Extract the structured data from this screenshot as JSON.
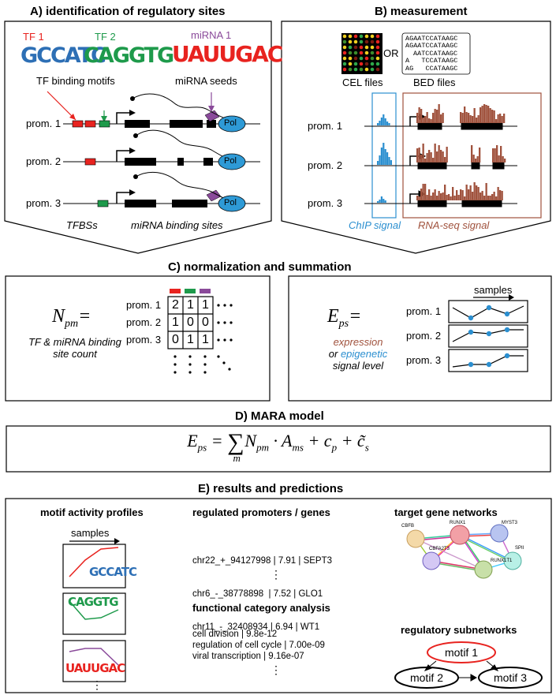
{
  "panelA": {
    "title": "A) identification of regulatory sites",
    "tf1": "TF 1",
    "tf2": "TF 2",
    "mirna1": "miRNA 1",
    "motif_tf1": "GCCATC",
    "motif_tf2": "CAGGTG",
    "motif_mirna": "UAUUGAC",
    "tf_binding_motifs": "TF binding motifs",
    "mirna_seeds": "miRNA seeds",
    "promoters": [
      "prom. 1",
      "prom. 2",
      "prom. 3"
    ],
    "pol": "Pol",
    "tfbss": "TFBSs",
    "mirna_binding_sites": "miRNA binding sites"
  },
  "panelB": {
    "title": "B) measurement",
    "cel_files": "CEL files",
    "or": "OR",
    "bed_files": "BED files",
    "bed_lines": [
      "AGAATCCATAAGC",
      "AGAATCCATAAGC",
      "AATCCATAAGC",
      "A   TCCATAAGC",
      "AG   CCATAAGC"
    ],
    "promoters": [
      "prom. 1",
      "prom. 2",
      "prom. 3"
    ],
    "chip_signal": "ChIP signal",
    "rnaseq_signal": "RNA-seq signal"
  },
  "panelC": {
    "title": "C) normalization and  summation",
    "npm_label": "N_pm =",
    "npm_sub": "TF & miRNA binding site count",
    "matrix_rows": [
      {
        "name": "prom. 1",
        "values": [
          "2",
          "1",
          "1"
        ]
      },
      {
        "name": "prom. 2",
        "values": [
          "1",
          "0",
          "0"
        ]
      },
      {
        "name": "prom. 3",
        "values": [
          "0",
          "1",
          "1"
        ]
      }
    ],
    "eps_label": "E_ps =",
    "expression": "expression",
    "or_word": "or",
    "epigenetic": "epigenetic",
    "signal_level": "signal level",
    "samples": "samples",
    "promoters": [
      "prom. 1",
      "prom. 2",
      "prom. 3"
    ]
  },
  "panelD": {
    "title": "D) MARA model",
    "equation": "E_ps = Σ_m N_pm · A_ms + c_p + c̃_s"
  },
  "panelE": {
    "title": "E) results and predictions",
    "motif_activity_profiles": "motif activity profiles",
    "samples": "samples",
    "regulated_title": "regulated promoters / genes",
    "regulated": [
      "chr22_+_94127998 | 7.91 | SEPT3",
      "chr6_-_38778898  | 7.52 | GLO1",
      "chr11_-_32408934 | 6.94 | WT1"
    ],
    "functional_title": "functional category analysis",
    "functional": [
      "cell division | 9.8e-12",
      "regulation of cell cycle | 7.00e-09",
      "viral transcription | 9.16e-07"
    ],
    "target_networks": "target gene networks",
    "network_nodes": [
      "CBFB",
      "RUNX1",
      "MYST3",
      "SPII",
      "CBFA2T3",
      "RUNX1T1"
    ],
    "regulatory_subnetworks": "regulatory subnetworks",
    "motifs": [
      "motif 1",
      "motif 2",
      "motif 3"
    ],
    "ellipsis": "⋮"
  },
  "colors": {
    "red": "#e8231f",
    "green": "#1e9a4b",
    "purple": "#8a4a9a",
    "brown": "#a0523d",
    "blue": "#2b8fd0",
    "pol": "#2e9ad6"
  }
}
